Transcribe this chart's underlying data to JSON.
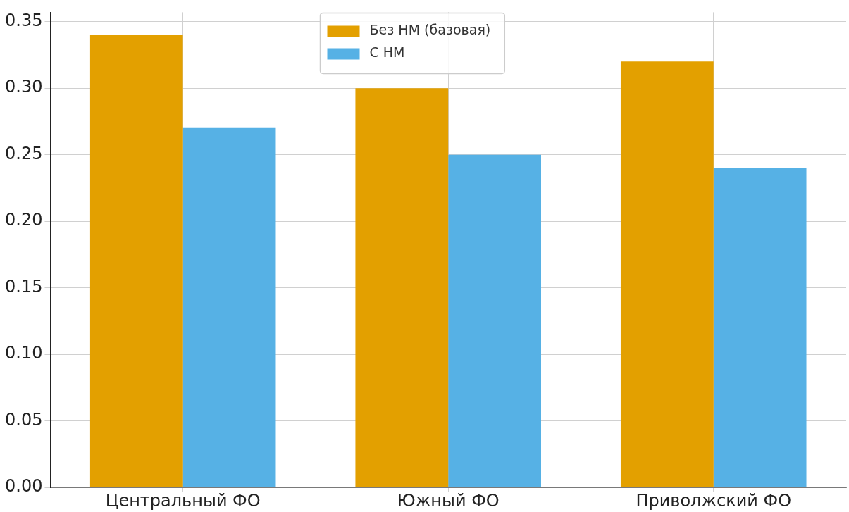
{
  "chart_data": {
    "type": "bar",
    "categories": [
      "Центральный ФО",
      "Южный ФО",
      "Приволжский ФО"
    ],
    "series": [
      {
        "name": "Без НМ (базовая)",
        "color": "#e3a000",
        "values": [
          0.34,
          0.3,
          0.32
        ]
      },
      {
        "name": "С НМ",
        "color": "#56b1e5",
        "values": [
          0.27,
          0.25,
          0.24
        ]
      }
    ],
    "ylim": [
      0,
      0.357
    ],
    "yticks": [
      {
        "value": 0,
        "label": "0.00"
      },
      {
        "value": 0.05,
        "label": "0.05"
      },
      {
        "value": 0.1,
        "label": "0.10"
      },
      {
        "value": 0.15,
        "label": "0.15"
      },
      {
        "value": 0.2,
        "label": "0.20"
      },
      {
        "value": 0.25,
        "label": "0.25"
      },
      {
        "value": 0.3,
        "label": "0.30"
      },
      {
        "value": 0.35,
        "label": "0.35"
      }
    ],
    "grid": true,
    "legend": "top"
  }
}
